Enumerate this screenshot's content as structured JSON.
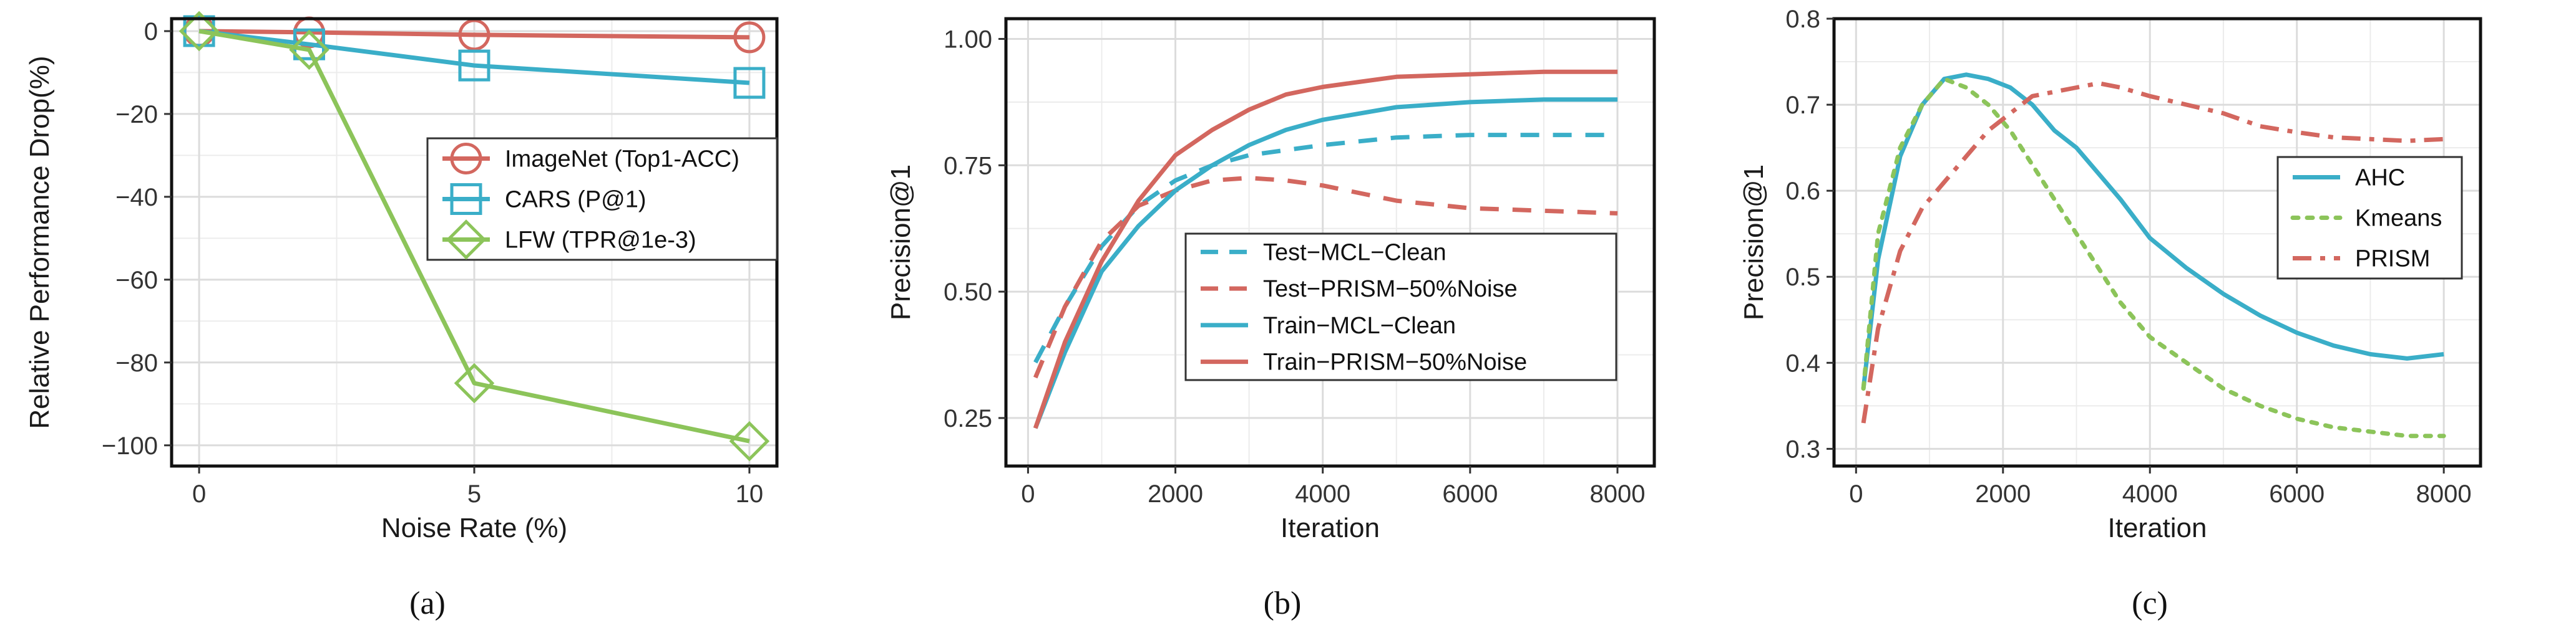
{
  "chart_data": [
    {
      "type": "line",
      "caption": "(a)",
      "xlabel": "Noise Rate (%)",
      "ylabel": "Relative Performance Drop(%)",
      "xlim": [
        -0.5,
        10.5
      ],
      "ylim": [
        -105,
        3
      ],
      "xticks": [
        0,
        5,
        10
      ],
      "yticks": [
        0,
        -20,
        -40,
        -60,
        -80,
        -100
      ],
      "grid": true,
      "legend": "center-right",
      "series": [
        {
          "name": "ImageNet (Top1-ACC)",
          "color": "#d3675f",
          "marker": "circle",
          "dash": "solid",
          "x": [
            0,
            2,
            5,
            10
          ],
          "values": [
            0,
            -0.3,
            -0.9,
            -1.5
          ]
        },
        {
          "name": "CARS (P@1)",
          "color": "#3aaec8",
          "marker": "square",
          "dash": "solid",
          "x": [
            0,
            2,
            5,
            10
          ],
          "values": [
            0,
            -3.2,
            -8.3,
            -12.5
          ]
        },
        {
          "name": "LFW (TPR@1e-3)",
          "color": "#8cc45a",
          "marker": "diamond",
          "dash": "solid",
          "x": [
            0,
            2,
            5,
            10
          ],
          "values": [
            0,
            -4.5,
            -85,
            -99
          ]
        }
      ]
    },
    {
      "type": "line",
      "caption": "(b)",
      "xlabel": "Iteration",
      "ylabel": "Precision@1",
      "xlim": [
        -300,
        8500
      ],
      "ylim": [
        0.155,
        1.04
      ],
      "xticks": [
        0,
        2000,
        4000,
        6000,
        8000
      ],
      "yticks": [
        0.25,
        0.5,
        0.75,
        1.0
      ],
      "ytick_labels": [
        "0.25",
        "0.50",
        "0.75",
        "1.00"
      ],
      "grid": true,
      "legend": "bottom-right",
      "series": [
        {
          "name": "Test−MCL−Clean",
          "color": "#3aaec8",
          "dash": "dashed",
          "x": [
            100,
            500,
            1000,
            1500,
            2000,
            2500,
            3000,
            3500,
            4000,
            5000,
            6000,
            7000,
            8000
          ],
          "values": [
            0.36,
            0.47,
            0.59,
            0.67,
            0.72,
            0.75,
            0.77,
            0.78,
            0.79,
            0.805,
            0.81,
            0.81,
            0.81
          ]
        },
        {
          "name": "Test−PRISM−50%Noise",
          "color": "#d3675f",
          "dash": "dashed",
          "x": [
            100,
            500,
            1000,
            1500,
            2000,
            2500,
            3000,
            3500,
            4000,
            5000,
            6000,
            7000,
            8000
          ],
          "values": [
            0.33,
            0.47,
            0.6,
            0.67,
            0.7,
            0.72,
            0.725,
            0.72,
            0.71,
            0.68,
            0.665,
            0.66,
            0.655
          ]
        },
        {
          "name": "Train−MCL−Clean",
          "color": "#3aaec8",
          "dash": "solid",
          "x": [
            100,
            500,
            1000,
            1500,
            2000,
            2500,
            3000,
            3500,
            4000,
            5000,
            6000,
            7000,
            8000
          ],
          "values": [
            0.23,
            0.38,
            0.54,
            0.63,
            0.7,
            0.75,
            0.79,
            0.82,
            0.84,
            0.865,
            0.875,
            0.88,
            0.88
          ]
        },
        {
          "name": "Train−PRISM−50%Noise",
          "color": "#d3675f",
          "dash": "solid",
          "x": [
            100,
            500,
            1000,
            1500,
            2000,
            2500,
            3000,
            3500,
            4000,
            4500,
            5000,
            6000,
            7000,
            8000
          ],
          "values": [
            0.23,
            0.4,
            0.56,
            0.68,
            0.77,
            0.82,
            0.86,
            0.89,
            0.905,
            0.915,
            0.925,
            0.93,
            0.935,
            0.935
          ]
        }
      ]
    },
    {
      "type": "line",
      "caption": "(c)",
      "xlabel": "Iteration",
      "ylabel": "Precision@1",
      "xlim": [
        -300,
        8500
      ],
      "ylim": [
        0.28,
        0.8
      ],
      "xticks": [
        0,
        2000,
        4000,
        6000,
        8000
      ],
      "yticks": [
        0.3,
        0.4,
        0.5,
        0.6,
        0.7,
        0.8
      ],
      "ytick_labels": [
        "0.3",
        "0.4",
        "0.5",
        "0.6",
        "0.7",
        "0.8"
      ],
      "grid": true,
      "legend": "center-right",
      "series": [
        {
          "name": "AHC",
          "color": "#3aaec8",
          "dash": "solid",
          "x": [
            100,
            300,
            600,
            900,
            1200,
            1500,
            1800,
            2100,
            2400,
            2700,
            3000,
            3300,
            3600,
            4000,
            4500,
            5000,
            5500,
            6000,
            6500,
            7000,
            7500,
            8000
          ],
          "values": [
            0.37,
            0.52,
            0.64,
            0.7,
            0.73,
            0.735,
            0.73,
            0.72,
            0.7,
            0.67,
            0.65,
            0.62,
            0.59,
            0.545,
            0.51,
            0.48,
            0.455,
            0.435,
            0.42,
            0.41,
            0.405,
            0.41
          ]
        },
        {
          "name": "Kmeans",
          "color": "#8cc45a",
          "dash": "dotted",
          "x": [
            100,
            300,
            600,
            900,
            1200,
            1500,
            1800,
            2100,
            2400,
            2700,
            3000,
            3300,
            3600,
            4000,
            4500,
            5000,
            5500,
            6000,
            6500,
            7000,
            7500,
            8000
          ],
          "values": [
            0.37,
            0.55,
            0.65,
            0.7,
            0.73,
            0.72,
            0.7,
            0.67,
            0.63,
            0.59,
            0.55,
            0.51,
            0.47,
            0.43,
            0.4,
            0.37,
            0.35,
            0.335,
            0.325,
            0.32,
            0.315,
            0.315
          ]
        },
        {
          "name": "PRISM",
          "color": "#d3675f",
          "dash": "dashdot",
          "x": [
            100,
            300,
            600,
            900,
            1200,
            1500,
            1800,
            2100,
            2400,
            2700,
            3000,
            3300,
            3600,
            4000,
            4500,
            5000,
            5500,
            6000,
            6500,
            7000,
            7500,
            8000
          ],
          "values": [
            0.33,
            0.44,
            0.53,
            0.58,
            0.61,
            0.64,
            0.67,
            0.69,
            0.71,
            0.715,
            0.72,
            0.725,
            0.72,
            0.71,
            0.7,
            0.69,
            0.675,
            0.668,
            0.662,
            0.66,
            0.658,
            0.66
          ]
        }
      ]
    }
  ]
}
